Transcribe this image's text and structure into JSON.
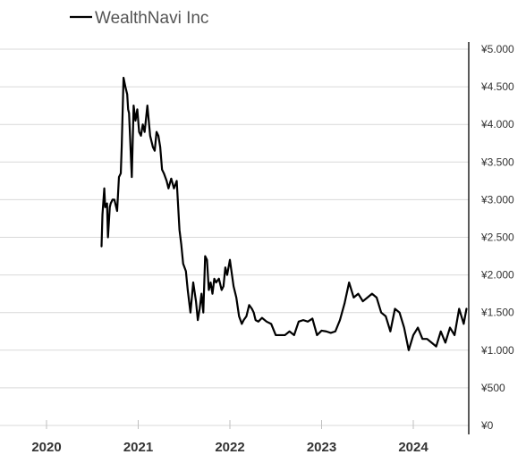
{
  "chart_data": {
    "type": "line",
    "title": "",
    "xlabel": "",
    "ylabel": "",
    "legend": {
      "position": "top-left",
      "entries": [
        "WealthNavi Inc"
      ]
    },
    "grid": true,
    "line_color": "#000000",
    "grid_color": "#d9d9d9",
    "x_range": [
      2019.5,
      2024.6
    ],
    "y_range": [
      0,
      5000
    ],
    "y_ticks": [
      {
        "value": 0,
        "label": "¥0"
      },
      {
        "value": 500,
        "label": "¥500"
      },
      {
        "value": 1000,
        "label": "¥1.000"
      },
      {
        "value": 1500,
        "label": "¥1.500"
      },
      {
        "value": 2000,
        "label": "¥2.000"
      },
      {
        "value": 2500,
        "label": "¥2.500"
      },
      {
        "value": 3000,
        "label": "¥3.000"
      },
      {
        "value": 3500,
        "label": "¥3.500"
      },
      {
        "value": 4000,
        "label": "¥4.000"
      },
      {
        "value": 4500,
        "label": "¥4.500"
      },
      {
        "value": 5000,
        "label": "¥5.000"
      }
    ],
    "x_ticks": [
      {
        "value": 2020,
        "label": "2020"
      },
      {
        "value": 2021,
        "label": "2021"
      },
      {
        "value": 2022,
        "label": "2022"
      },
      {
        "value": 2023,
        "label": "2023"
      },
      {
        "value": 2024,
        "label": "2024"
      }
    ],
    "series": [
      {
        "name": "WealthNavi Inc",
        "x": [
          2020.6,
          2020.61,
          2020.63,
          2020.64,
          2020.66,
          2020.67,
          2020.69,
          2020.7,
          2020.72,
          2020.74,
          2020.77,
          2020.79,
          2020.81,
          2020.82,
          2020.84,
          2020.86,
          2020.88,
          2020.89,
          2020.9,
          2020.93,
          2020.95,
          2020.97,
          2020.99,
          2021.01,
          2021.03,
          2021.05,
          2021.07,
          2021.1,
          2021.13,
          2021.16,
          2021.18,
          2021.2,
          2021.22,
          2021.24,
          2021.26,
          2021.28,
          2021.31,
          2021.33,
          2021.36,
          2021.39,
          2021.42,
          2021.45,
          2021.47,
          2021.49,
          2021.52,
          2021.54,
          2021.57,
          2021.6,
          2021.63,
          2021.65,
          2021.67,
          2021.69,
          2021.71,
          2021.73,
          2021.75,
          2021.77,
          2021.79,
          2021.81,
          2021.83,
          2021.85,
          2021.88,
          2021.91,
          2021.93,
          2021.95,
          2021.97,
          2022.0,
          2022.04,
          2022.07,
          2022.1,
          2022.13,
          2022.15,
          2022.18,
          2022.21,
          2022.24,
          2022.26,
          2022.28,
          2022.31,
          2022.35,
          2022.4,
          2022.45,
          2022.5,
          2022.55,
          2022.6,
          2022.65,
          2022.7,
          2022.75,
          2022.8,
          2022.85,
          2022.9,
          2022.95,
          2023.0,
          2023.05,
          2023.1,
          2023.15,
          2023.2,
          2023.25,
          2023.3,
          2023.35,
          2023.4,
          2023.45,
          2023.5,
          2023.55,
          2023.6,
          2023.65,
          2023.7,
          2023.75,
          2023.8,
          2023.85,
          2023.9,
          2023.95,
          2024.0,
          2024.05,
          2024.1,
          2024.15,
          2024.2,
          2024.25,
          2024.3,
          2024.35,
          2024.4,
          2024.45,
          2024.5,
          2024.55,
          2024.58
        ],
        "values": [
          2380,
          2800,
          3150,
          2900,
          2950,
          2500,
          2900,
          2950,
          3000,
          3000,
          2850,
          3300,
          3350,
          3700,
          4620,
          4500,
          4400,
          4200,
          4150,
          3300,
          4250,
          4050,
          4200,
          3900,
          3850,
          4000,
          3900,
          4250,
          3850,
          3700,
          3650,
          3900,
          3850,
          3700,
          3400,
          3350,
          3250,
          3150,
          3280,
          3150,
          3250,
          2600,
          2400,
          2150,
          2050,
          1800,
          1500,
          1900,
          1650,
          1400,
          1550,
          1750,
          1500,
          2250,
          2200,
          1800,
          1900,
          1750,
          1950,
          1900,
          1950,
          1800,
          1850,
          2100,
          2000,
          2200,
          1850,
          1700,
          1450,
          1350,
          1400,
          1450,
          1600,
          1550,
          1500,
          1400,
          1380,
          1430,
          1380,
          1350,
          1200,
          1200,
          1200,
          1250,
          1200,
          1380,
          1400,
          1380,
          1420,
          1200,
          1260,
          1250,
          1230,
          1250,
          1400,
          1620,
          1900,
          1700,
          1750,
          1650,
          1700,
          1750,
          1700,
          1500,
          1450,
          1250,
          1550,
          1500,
          1300,
          1000,
          1200,
          1300,
          1150,
          1150,
          1100,
          1050,
          1250,
          1100,
          1300,
          1200,
          1550,
          1350,
          1550
        ]
      }
    ]
  }
}
